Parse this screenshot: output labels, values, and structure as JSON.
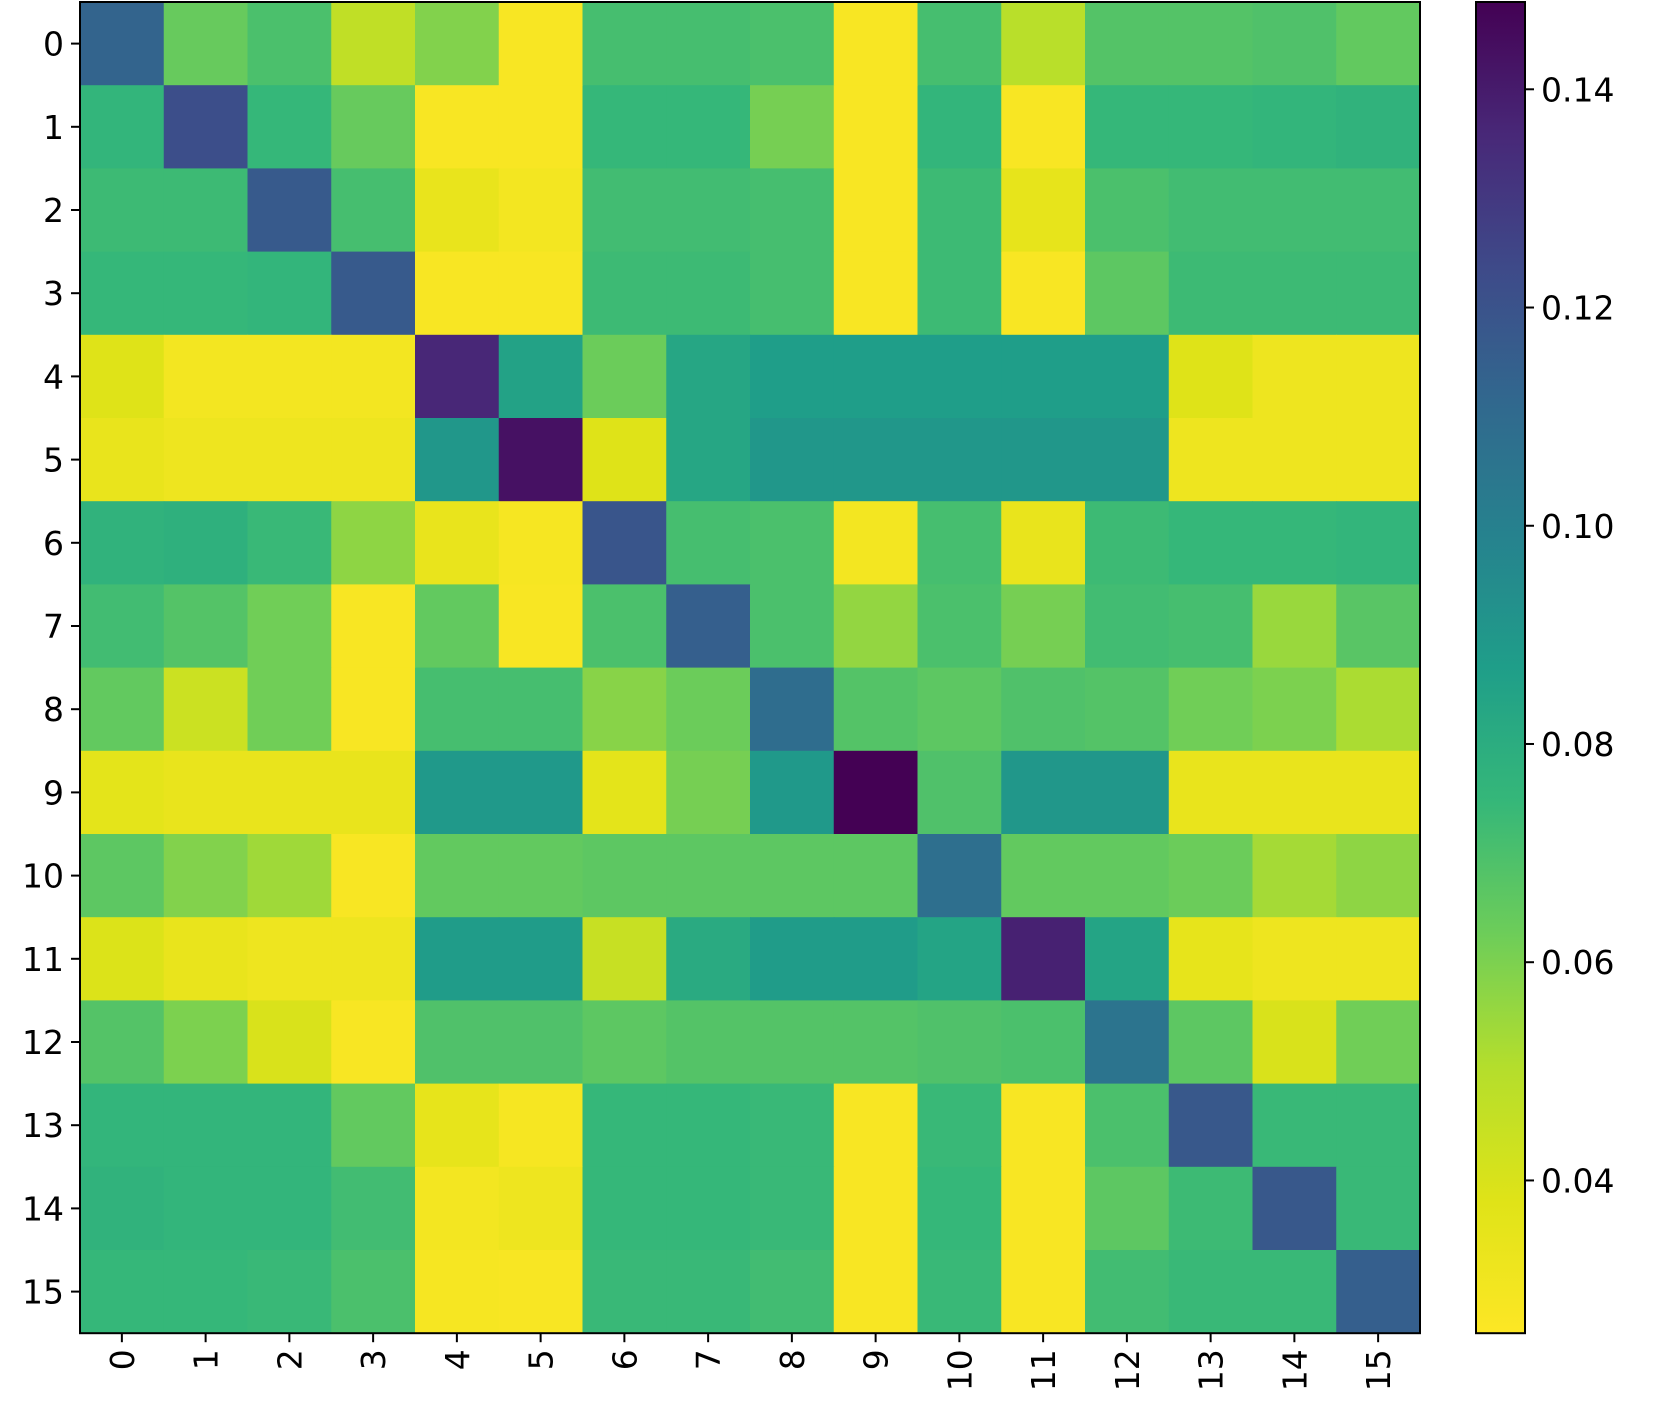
{
  "chart_data": {
    "type": "heatmap",
    "title": "",
    "xlabel": "",
    "ylabel": "",
    "colormap": "viridis_r",
    "vmin": 0.026,
    "vmax": 0.148,
    "x_categories": [
      "0",
      "1",
      "2",
      "3",
      "4",
      "5",
      "6",
      "7",
      "8",
      "9",
      "10",
      "11",
      "12",
      "13",
      "14",
      "15"
    ],
    "y_categories": [
      "0",
      "1",
      "2",
      "3",
      "4",
      "5",
      "6",
      "7",
      "8",
      "9",
      "10",
      "11",
      "12",
      "13",
      "14",
      "15"
    ],
    "colorbar": {
      "ticks": [
        0.04,
        0.06,
        0.08,
        0.1,
        0.12,
        0.14
      ],
      "tick_labels": [
        "0.04",
        "0.06",
        "0.08",
        "0.10",
        "0.12",
        "0.14"
      ]
    },
    "values": [
      [
        0.113,
        0.064,
        0.07,
        0.047,
        0.059,
        0.028,
        0.071,
        0.071,
        0.07,
        0.028,
        0.071,
        0.049,
        0.068,
        0.068,
        0.069,
        0.065
      ],
      [
        0.076,
        0.122,
        0.075,
        0.064,
        0.028,
        0.028,
        0.075,
        0.075,
        0.061,
        0.028,
        0.076,
        0.028,
        0.075,
        0.075,
        0.076,
        0.077
      ],
      [
        0.073,
        0.073,
        0.117,
        0.071,
        0.034,
        0.03,
        0.072,
        0.072,
        0.071,
        0.028,
        0.073,
        0.035,
        0.07,
        0.072,
        0.072,
        0.072
      ],
      [
        0.075,
        0.075,
        0.076,
        0.117,
        0.028,
        0.028,
        0.073,
        0.073,
        0.071,
        0.028,
        0.073,
        0.028,
        0.066,
        0.073,
        0.073,
        0.073
      ],
      [
        0.038,
        0.03,
        0.03,
        0.03,
        0.136,
        0.085,
        0.063,
        0.083,
        0.087,
        0.087,
        0.087,
        0.087,
        0.087,
        0.038,
        0.032,
        0.032
      ],
      [
        0.034,
        0.032,
        0.032,
        0.032,
        0.09,
        0.143,
        0.038,
        0.083,
        0.09,
        0.09,
        0.09,
        0.09,
        0.09,
        0.032,
        0.032,
        0.032
      ],
      [
        0.077,
        0.078,
        0.074,
        0.057,
        0.034,
        0.029,
        0.119,
        0.071,
        0.07,
        0.03,
        0.071,
        0.034,
        0.073,
        0.075,
        0.075,
        0.076
      ],
      [
        0.072,
        0.068,
        0.062,
        0.028,
        0.065,
        0.028,
        0.07,
        0.115,
        0.07,
        0.056,
        0.07,
        0.061,
        0.072,
        0.071,
        0.055,
        0.067
      ],
      [
        0.065,
        0.044,
        0.062,
        0.028,
        0.071,
        0.071,
        0.058,
        0.063,
        0.109,
        0.068,
        0.066,
        0.069,
        0.068,
        0.062,
        0.06,
        0.052
      ],
      [
        0.036,
        0.034,
        0.034,
        0.034,
        0.089,
        0.089,
        0.036,
        0.061,
        0.089,
        0.148,
        0.069,
        0.09,
        0.09,
        0.034,
        0.034,
        0.034
      ],
      [
        0.066,
        0.059,
        0.054,
        0.028,
        0.065,
        0.065,
        0.066,
        0.066,
        0.066,
        0.066,
        0.108,
        0.065,
        0.065,
        0.063,
        0.053,
        0.057
      ],
      [
        0.039,
        0.034,
        0.032,
        0.032,
        0.088,
        0.088,
        0.045,
        0.081,
        0.088,
        0.088,
        0.084,
        0.138,
        0.084,
        0.035,
        0.032,
        0.032
      ],
      [
        0.068,
        0.06,
        0.04,
        0.028,
        0.069,
        0.069,
        0.066,
        0.068,
        0.068,
        0.068,
        0.069,
        0.07,
        0.106,
        0.066,
        0.04,
        0.062
      ],
      [
        0.076,
        0.076,
        0.076,
        0.065,
        0.035,
        0.029,
        0.075,
        0.075,
        0.074,
        0.028,
        0.074,
        0.028,
        0.07,
        0.118,
        0.074,
        0.074
      ],
      [
        0.077,
        0.076,
        0.076,
        0.072,
        0.03,
        0.032,
        0.075,
        0.075,
        0.074,
        0.028,
        0.075,
        0.028,
        0.066,
        0.073,
        0.118,
        0.074
      ],
      [
        0.075,
        0.075,
        0.074,
        0.07,
        0.029,
        0.028,
        0.074,
        0.074,
        0.072,
        0.028,
        0.074,
        0.028,
        0.072,
        0.074,
        0.074,
        0.115
      ]
    ]
  }
}
